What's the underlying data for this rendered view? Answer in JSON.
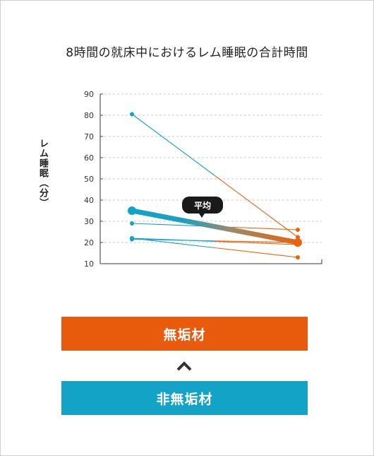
{
  "title": "8時間の就床中におけるレム睡眠の合計時間",
  "ylabel": "レム睡眠（分）",
  "average_label": "平均",
  "legend": {
    "top_bar": "無垢材",
    "bottom_bar": "非無垢材",
    "top_color": "#e85a0c",
    "bottom_color": "#12a3c6"
  },
  "chart_data": {
    "type": "line",
    "title": "8時間の就床中におけるレム睡眠の合計時間",
    "ylabel": "レム睡眠（分）",
    "xlabel": "",
    "ylim": [
      10,
      90
    ],
    "yticks": [
      10,
      20,
      30,
      40,
      50,
      60,
      70,
      80,
      90
    ],
    "categories": [
      "非無垢材",
      "無垢材"
    ],
    "grid": true,
    "series": [
      {
        "values": [
          80.5,
          22.5
        ]
      },
      {
        "values": [
          29,
          26
        ]
      },
      {
        "values": [
          22,
          13
        ]
      },
      {
        "values": [
          22,
          19
        ]
      },
      {
        "values": [
          21.5,
          20
        ]
      }
    ],
    "average": {
      "name": "平均",
      "values": [
        35,
        20
      ]
    },
    "colors": {
      "left": "#12a3c6",
      "right": "#e8630f"
    }
  }
}
